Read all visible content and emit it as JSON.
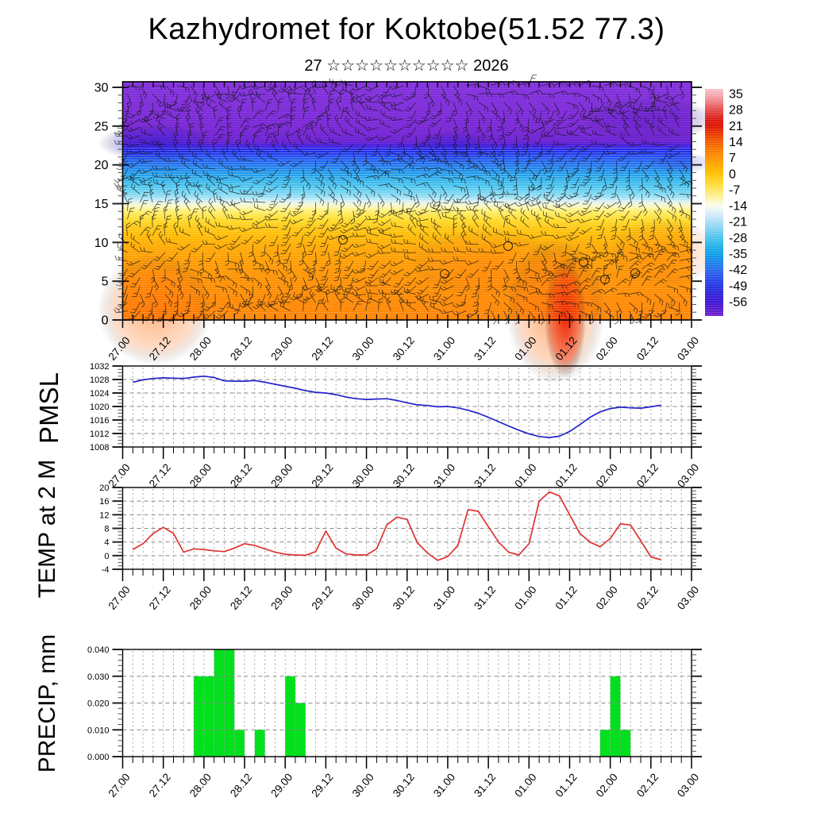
{
  "title": "Kazhydromet for Koktobe(51.52 77.3)",
  "subtitle": "27 ☆☆☆☆☆☆☆☆☆☆ 2026",
  "background_color": "#ffffff",
  "axis_color": "#000000",
  "grid_color": "#999999",
  "x_axis": {
    "major_tick_labels": [
      "27.00",
      "27.12",
      "28.00",
      "28.12",
      "29.00",
      "29.12",
      "30.00",
      "30.12",
      "31.00",
      "31.12",
      "01.00",
      "01.12",
      "02.00",
      "02.12",
      "03.00"
    ],
    "major_step_hours": 12,
    "minor_step_hours": 3,
    "total_hours": 168
  },
  "chart_data": [
    {
      "id": "cross-section",
      "type": "heatmap",
      "ylabel": "",
      "ylim": [
        0,
        30
      ],
      "y_major_ticks": [
        0,
        5,
        10,
        15,
        20,
        25,
        30
      ],
      "y_minor_step": 1,
      "colorbar": {
        "orientation": "vertical",
        "tick_labels": [
          "35",
          "28",
          "21",
          "14",
          "7",
          "0",
          "-7",
          "-14",
          "-21",
          "-28",
          "-35",
          "-42",
          "-49",
          "-56"
        ]
      },
      "bands": [
        {
          "height_from": 22.5,
          "height_to": 30,
          "color": "#7c2ad2",
          "approx_temp_c": -58
        },
        {
          "height_from": 21,
          "height_to": 22.5,
          "color": "#1e2ce2",
          "approx_temp_c": -48
        },
        {
          "height_from": 17,
          "height_to": 21,
          "color": "#2ba4ea",
          "approx_temp_c": -33
        },
        {
          "height_from": 15.5,
          "height_to": 17,
          "color": "#9fdef3",
          "approx_temp_c": -20
        },
        {
          "height_from": 14.8,
          "height_to": 15.5,
          "color": "#f6f8e0",
          "approx_temp_c": -14
        },
        {
          "height_from": 13,
          "height_to": 14.8,
          "color": "#ffe34d",
          "approx_temp_c": -8
        },
        {
          "height_from": 9,
          "height_to": 13,
          "color": "#ffb400",
          "approx_temp_c": -2
        },
        {
          "height_from": 0,
          "height_to": 9,
          "color": "#ff8800",
          "approx_temp_c": 4
        }
      ],
      "hot_spot": {
        "time_label": "01.09",
        "height_range": [
          0,
          5
        ],
        "color": "#e82500",
        "approx_temp_c": 18
      },
      "overlay_note": "dense wind-barb field overlaid (individual barb values not legible)"
    },
    {
      "id": "pmsl",
      "type": "line",
      "ylabel": "PMSL",
      "ylim": [
        1008,
        1032
      ],
      "y_major_ticks": [
        1008,
        1012,
        1016,
        1020,
        1024,
        1028,
        1032
      ],
      "y_minor_step": 1,
      "line_color": "#2323cd",
      "start_hours": 3,
      "step_hours": 3,
      "values": [
        1027.2,
        1027.9,
        1028.3,
        1028.5,
        1028.4,
        1028.3,
        1028.7,
        1029.0,
        1028.6,
        1027.6,
        1027.5,
        1027.5,
        1027.7,
        1027.2,
        1026.6,
        1026.0,
        1025.4,
        1024.7,
        1024.2,
        1024.0,
        1023.5,
        1022.8,
        1022.3,
        1022.1,
        1022.2,
        1022.3,
        1021.8,
        1021.1,
        1020.5,
        1020.3,
        1019.9,
        1020.0,
        1019.6,
        1018.9,
        1018.0,
        1016.8,
        1015.5,
        1014.2,
        1013.0,
        1011.9,
        1011.1,
        1010.8,
        1011.2,
        1012.6,
        1014.6,
        1016.8,
        1018.4,
        1019.4,
        1019.8,
        1019.6,
        1019.5,
        1019.9,
        1020.4
      ]
    },
    {
      "id": "temp2m",
      "type": "line",
      "ylabel": "TEMP at 2 M",
      "ylim": [
        -4,
        20
      ],
      "y_major_ticks": [
        -4,
        0,
        4,
        8,
        12,
        16,
        20
      ],
      "y_minor_step": 1,
      "line_color": "#e03232",
      "start_hours": 3,
      "step_hours": 3,
      "values": [
        1.8,
        3.5,
        6.5,
        8.3,
        6.5,
        1.0,
        2.0,
        1.8,
        1.4,
        1.2,
        2.2,
        3.5,
        3.0,
        2.0,
        1.0,
        0.4,
        0.2,
        0.1,
        1.2,
        7.2,
        2.2,
        0.5,
        0.2,
        0.2,
        2.0,
        9.0,
        11.3,
        10.6,
        3.8,
        0.8,
        -1.4,
        -0.3,
        3.0,
        13.5,
        13.0,
        8.5,
        4.0,
        1.0,
        0.2,
        3.5,
        16.0,
        18.7,
        17.5,
        12.0,
        6.5,
        4.0,
        2.6,
        5.0,
        9.3,
        9.0,
        4.4,
        -0.4,
        -1.2
      ]
    },
    {
      "id": "precip",
      "type": "bar",
      "ylabel": "PRECIP, mm",
      "ylim": [
        0,
        0.04
      ],
      "y_major_tick_labels": [
        "0.000",
        "0.010",
        "0.020",
        "0.030",
        "0.040"
      ],
      "y_major_step": 0.01,
      "y_minor_step": 0.002,
      "bar_color": "#00e01c",
      "bin_hours": 3,
      "bars": [
        {
          "start_hours": 21,
          "value": 0.03
        },
        {
          "start_hours": 24,
          "value": 0.03
        },
        {
          "start_hours": 27,
          "value": 0.04
        },
        {
          "start_hours": 30,
          "value": 0.04
        },
        {
          "start_hours": 33,
          "value": 0.01
        },
        {
          "start_hours": 39,
          "value": 0.01
        },
        {
          "start_hours": 48,
          "value": 0.03
        },
        {
          "start_hours": 51,
          "value": 0.02
        },
        {
          "start_hours": 141,
          "value": 0.01
        },
        {
          "start_hours": 144,
          "value": 0.03
        },
        {
          "start_hours": 147,
          "value": 0.01
        }
      ]
    }
  ]
}
